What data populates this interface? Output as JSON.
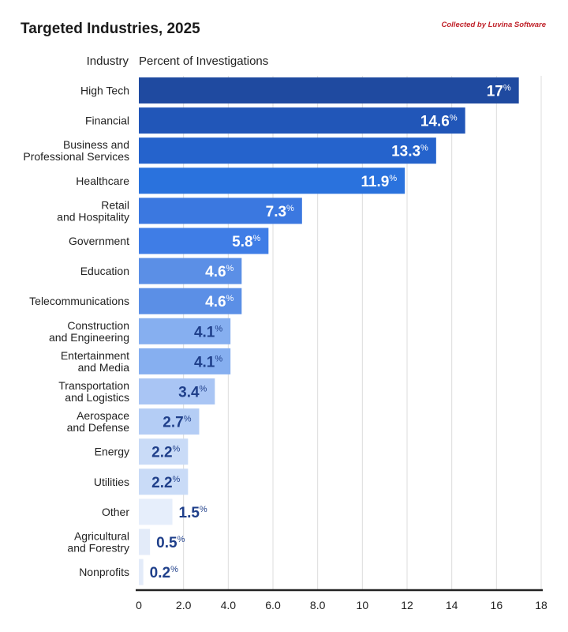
{
  "header": {
    "title": "Targeted Industries, 2025",
    "credit": "Collected by Luvina Software"
  },
  "chart_data": {
    "type": "bar",
    "orientation": "horizontal",
    "title": "Targeted Industries, 2025",
    "ylabel": "Industry",
    "xlabel": "Percent of Investigations",
    "categories": [
      [
        "High Tech"
      ],
      [
        "Financial"
      ],
      [
        "Business and",
        "Professional Services"
      ],
      [
        "Healthcare"
      ],
      [
        "Retail",
        "and Hospitality"
      ],
      [
        "Government"
      ],
      [
        "Education"
      ],
      [
        "Telecommunications"
      ],
      [
        "Construction",
        "and Engineering"
      ],
      [
        "Entertainment",
        "and Media"
      ],
      [
        "Transportation",
        "and Logistics"
      ],
      [
        "Aerospace",
        "and Defense"
      ],
      [
        "Energy"
      ],
      [
        "Utilities"
      ],
      [
        "Other"
      ],
      [
        "Agricultural",
        "and Forestry"
      ],
      [
        "Nonprofits"
      ]
    ],
    "values": [
      17,
      14.6,
      13.3,
      11.9,
      7.3,
      5.8,
      4.6,
      4.6,
      4.1,
      4.1,
      3.4,
      2.7,
      2.2,
      2.2,
      1.5,
      0.5,
      0.2
    ],
    "value_labels": [
      "17",
      "14.6",
      "13.3",
      "11.9",
      "7.3",
      "5.8",
      "4.6",
      "4.6",
      "4.1",
      "4.1",
      "3.4",
      "2.7",
      "2.2",
      "2.2",
      "1.5",
      "0.5",
      "0.2"
    ],
    "unit": "%",
    "bar_colors": [
      "#1f4aa0",
      "#2156b8",
      "#2563cc",
      "#2a72dd",
      "#3b78e0",
      "#3f7de6",
      "#5b8fe6",
      "#5b8fe6",
      "#86aff0",
      "#86aff0",
      "#a9c5f4",
      "#b4cdf5",
      "#c9dbf7",
      "#c9dbf7",
      "#e6eefb",
      "#e3ebf9",
      "#e3ebf9"
    ],
    "xticks": [
      "0",
      "2.0",
      "4.0",
      "6.0",
      "8.0",
      "10",
      "12",
      "14",
      "16",
      "18"
    ],
    "xlim": [
      0,
      18
    ],
    "grid": true
  }
}
